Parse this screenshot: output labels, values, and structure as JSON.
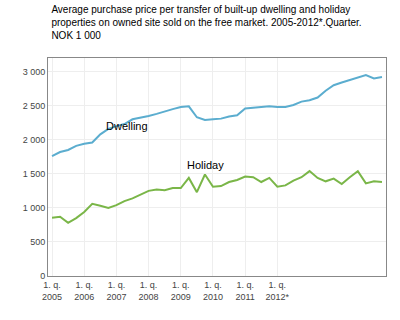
{
  "chart_data": {
    "type": "line",
    "title": "Average purchase price per transfer of built-up dwelling and holiday\nproperties on owned site sold on the free market. 2005-2012*.Quarter.\nNOK 1 000",
    "categories": [
      "1. q.\n2005",
      null,
      null,
      null,
      "1. q.\n2006",
      null,
      null,
      null,
      "1. q.\n2007",
      null,
      null,
      null,
      "1. q.\n2008",
      null,
      null,
      null,
      "1. q.\n2009",
      null,
      null,
      null,
      "1. q.\n2010",
      null,
      null,
      null,
      "1. q.\n2011",
      null,
      null,
      null,
      "1. q.\n2012*",
      null,
      null,
      null,
      null,
      null,
      null,
      null,
      null,
      null,
      null,
      null,
      null,
      null
    ],
    "series": [
      {
        "name": "Dwelling",
        "color": "#5badcf",
        "values": [
          1760,
          1820,
          1850,
          1910,
          1940,
          1960,
          2080,
          2160,
          2200,
          2230,
          2300,
          2320,
          2350,
          2380,
          2420,
          2450,
          2480,
          2490,
          2330,
          2290,
          2300,
          2310,
          2340,
          2360,
          2460,
          2470,
          2490,
          2490,
          2480,
          2480,
          2510,
          2560,
          2580,
          2620,
          2720,
          2800,
          2840,
          2880,
          2920,
          2950,
          2900,
          2920
        ]
      },
      {
        "name": "Holiday",
        "color": "#7ab648",
        "values": [
          855,
          870,
          780,
          850,
          940,
          1060,
          1030,
          1000,
          1040,
          1100,
          1140,
          1200,
          1250,
          1270,
          1260,
          1290,
          1290,
          1440,
          1230,
          1490,
          1310,
          1320,
          1380,
          1410,
          1460,
          1450,
          1380,
          1440,
          1310,
          1330,
          1400,
          1450,
          1540,
          1440,
          1390,
          1430,
          1350,
          1450,
          1540,
          1360,
          1390,
          1380
        ]
      }
    ],
    "annotations": [
      {
        "text": "Dwelling",
        "x": 6.5,
        "y": 2080
      },
      {
        "text": "Holiday",
        "x": 16.5,
        "y": 1510
      }
    ],
    "ylim": [
      0,
      3200
    ],
    "yticks": [
      0,
      500,
      {
        "value": 1000,
        "label": "1 000"
      },
      {
        "value": 1500,
        "label": "1 500"
      },
      {
        "value": 2000,
        "label": "2 000"
      },
      {
        "value": 2500,
        "label": "2 500"
      },
      {
        "value": 3000,
        "label": "3 000"
      }
    ],
    "grid": true
  }
}
